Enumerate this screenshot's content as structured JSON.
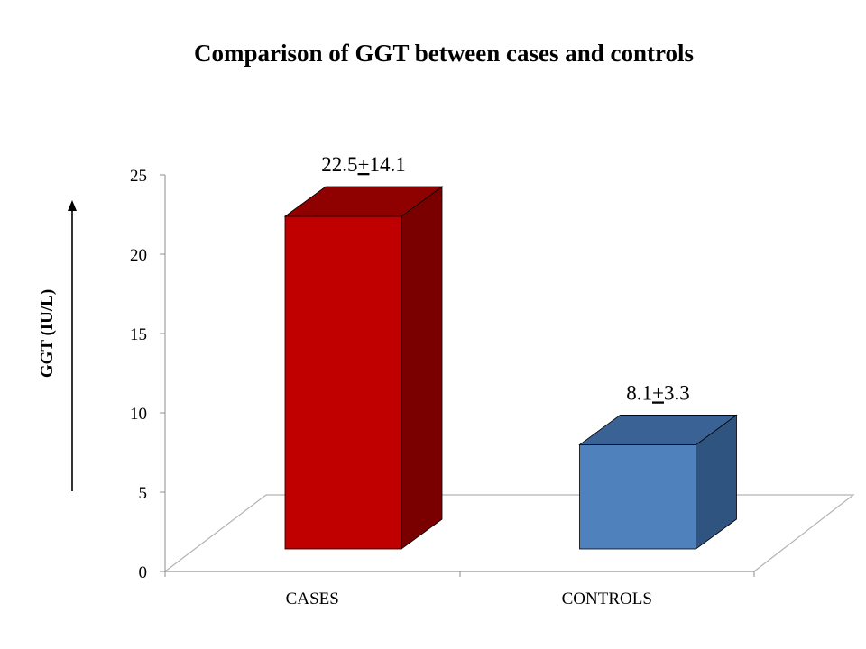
{
  "chart_data": {
    "type": "bar",
    "title": "Comparison of GGT between cases and controls",
    "xlabel": "",
    "ylabel": "GGT (IU/L)",
    "ylim": [
      0,
      25
    ],
    "yticks": [
      0,
      5,
      10,
      15,
      20,
      25
    ],
    "categories": [
      "CASES",
      "CONTROLS"
    ],
    "values": [
      22.5,
      8.1
    ],
    "data_labels": [
      {
        "value": "22.5",
        "pm": "+",
        "sd": "14.1"
      },
      {
        "value": "8.1",
        "pm": "+",
        "sd": "3.3"
      }
    ],
    "style": "3d-column",
    "grid": false,
    "legend": "none",
    "colors": [
      {
        "front": "#c00000",
        "top": "#8f0000",
        "side": "#7a0000"
      },
      {
        "front": "#4f81bd",
        "top": "#3a6294",
        "side": "#2f5480"
      }
    ]
  }
}
